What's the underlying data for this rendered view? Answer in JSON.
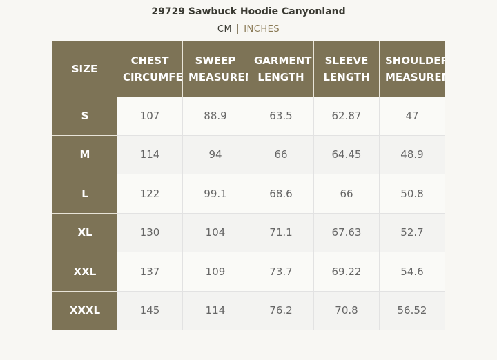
{
  "header": {
    "title": "29729 Sawbuck Hoodie Canyonland",
    "units": [
      "CM",
      "INCHES"
    ]
  },
  "table": {
    "columns": [
      "SIZE",
      "CHEST CIRCUMFERENCE",
      "SWEEP MEASUREMENT",
      "GARMENT LENGTH",
      "SLEEVE LENGTH",
      "SHOULDER MEASUREMENT"
    ],
    "rows": [
      [
        "S",
        "107",
        "88.9",
        "63.5",
        "62.87",
        "47"
      ],
      [
        "M",
        "114",
        "94",
        "66",
        "64.45",
        "48.9"
      ],
      [
        "L",
        "122",
        "99.1",
        "68.6",
        "66",
        "50.8"
      ],
      [
        "XL",
        "130",
        "104",
        "71.1",
        "67.63",
        "52.7"
      ],
      [
        "XXL",
        "137",
        "109",
        "73.7",
        "69.22",
        "54.6"
      ],
      [
        "XXXL",
        "145",
        "114",
        "76.2",
        "70.8",
        "56.52"
      ]
    ]
  }
}
